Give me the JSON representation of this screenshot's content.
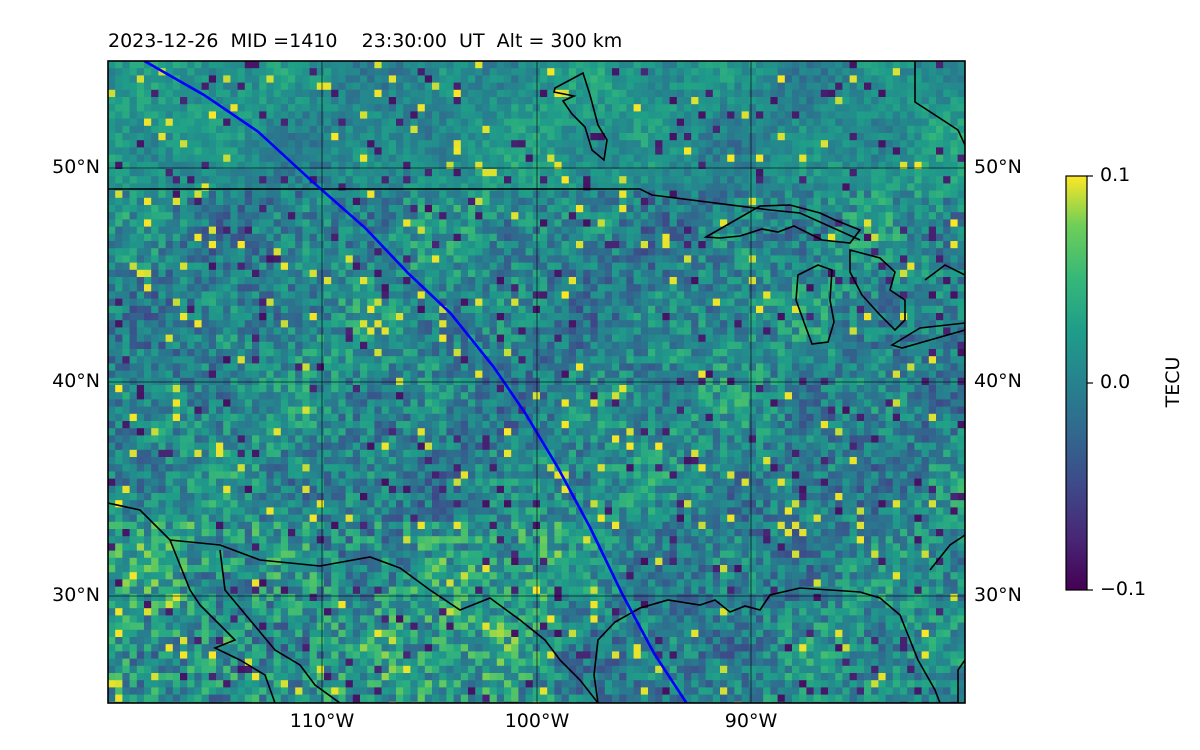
{
  "title": {
    "date": "2023-12-26",
    "mid_text": "MID =1410",
    "time_text": "23:30:00  UT",
    "alt_text": "Alt = 300 km"
  },
  "map": {
    "lon_range": [
      -120,
      -80
    ],
    "lat_range": [
      25,
      55
    ],
    "gridlines": true,
    "lat_ticks": [
      {
        "value": 30,
        "label": "30°N"
      },
      {
        "value": 40,
        "label": "40°N"
      },
      {
        "value": 50,
        "label": "50°N"
      }
    ],
    "lon_ticks": [
      {
        "value": -110,
        "label": "110°W"
      },
      {
        "value": -100,
        "label": "100°W"
      },
      {
        "value": -90,
        "label": "90°W"
      }
    ],
    "field": "differential TEC (detrended), pixelated heat-map",
    "track_color": "#0000ff",
    "track": [
      [
        -118.3,
        55
      ],
      [
        -115.5,
        53.4
      ],
      [
        -113,
        51.7
      ],
      [
        -110.5,
        49.4
      ],
      [
        -108,
        47.2
      ],
      [
        -106,
        45.1
      ],
      [
        -104,
        43.2
      ],
      [
        -102,
        40.7
      ],
      [
        -100.5,
        38.5
      ],
      [
        -99,
        36
      ],
      [
        -97.5,
        33.2
      ],
      [
        -96,
        30.1
      ],
      [
        -94.5,
        27.3
      ],
      [
        -93,
        25
      ]
    ]
  },
  "colorbar": {
    "label": "TECU",
    "colormap": "viridis",
    "vmin": -0.1,
    "vmax": 0.1,
    "ticks": [
      {
        "value": 0.1,
        "label": "0.1"
      },
      {
        "value": 0.0,
        "label": "0.0"
      },
      {
        "value": -0.1,
        "label": "−0.1"
      }
    ]
  }
}
